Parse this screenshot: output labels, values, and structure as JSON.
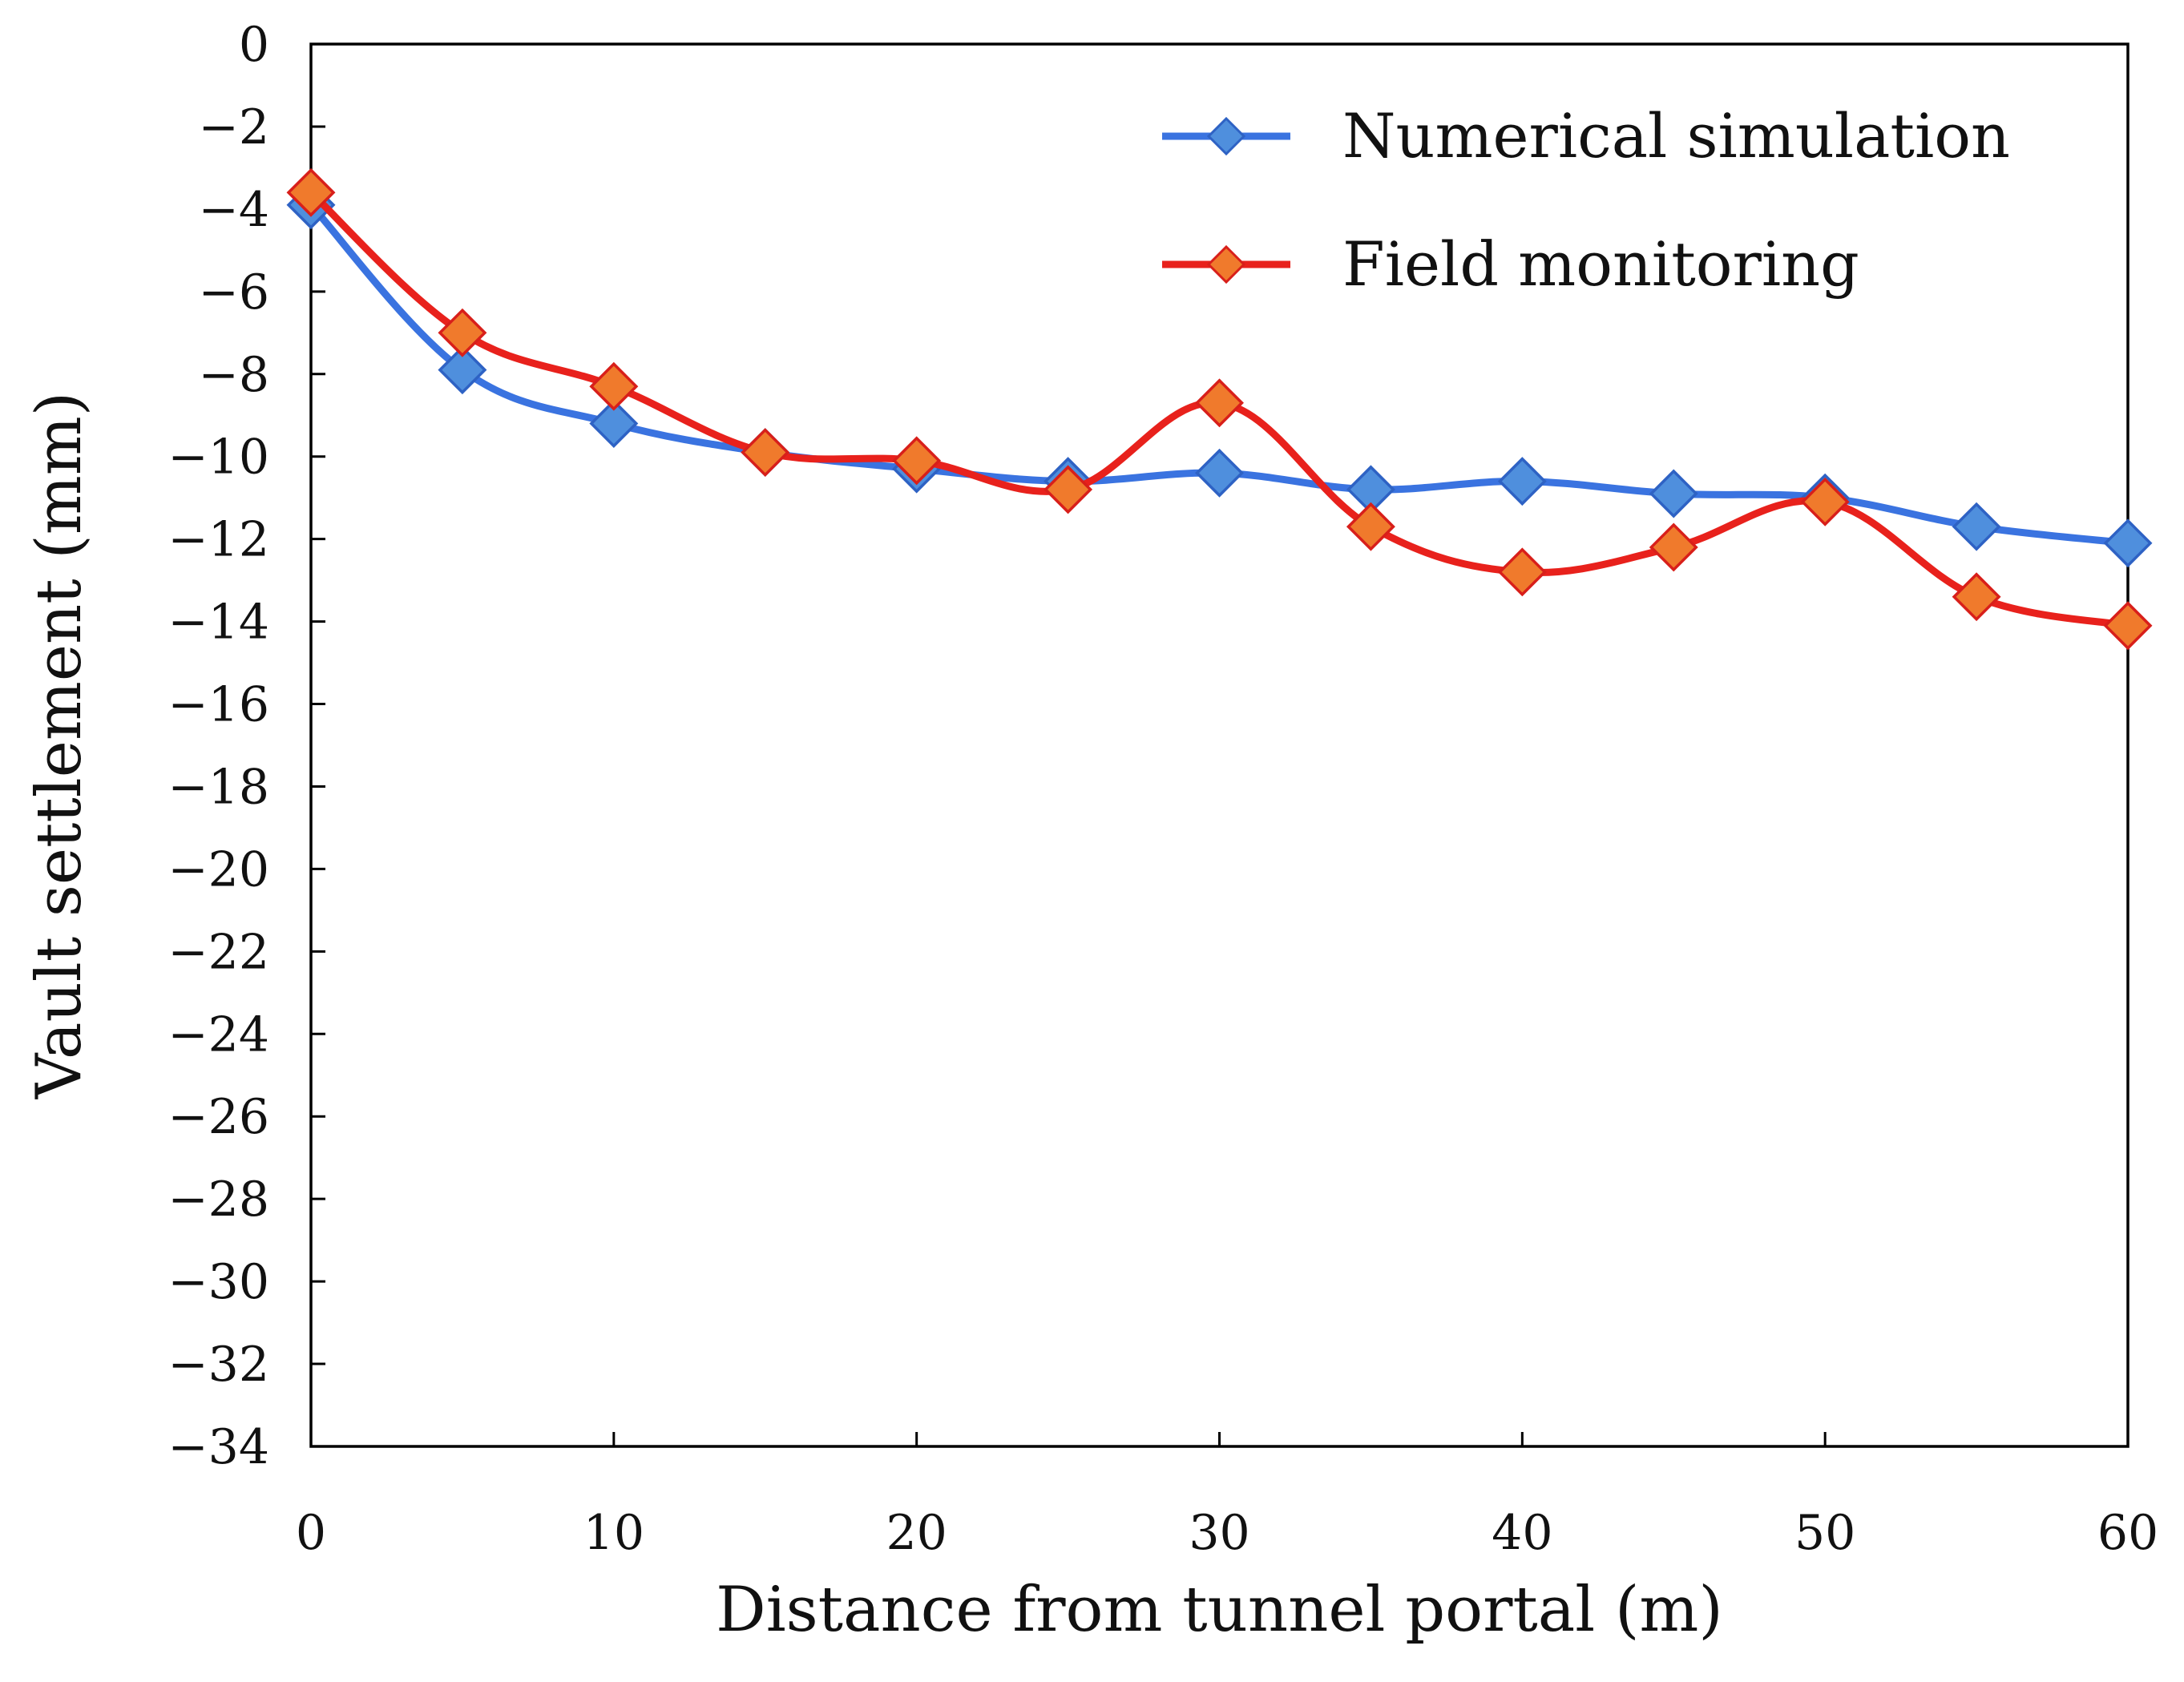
{
  "chart_data": {
    "type": "line",
    "title": "",
    "xlabel": "Distance from tunnel portal (m)",
    "ylabel": "Vault settlement (mm)",
    "xlim": [
      0,
      60
    ],
    "ylim": [
      -34,
      0
    ],
    "x_ticks": [
      0,
      10,
      20,
      30,
      40,
      50,
      60
    ],
    "y_ticks": [
      0,
      -2,
      -4,
      -6,
      -8,
      -10,
      -12,
      -14,
      -16,
      -18,
      -20,
      -22,
      -24,
      -26,
      -28,
      -30,
      -32,
      -34
    ],
    "grid": false,
    "legend_position": "top-right",
    "x": [
      0,
      5,
      10,
      15,
      20,
      25,
      30,
      35,
      40,
      45,
      50,
      55,
      60
    ],
    "series": [
      {
        "name": "Numerical simulation",
        "line_color": "#3a73e0",
        "marker_color": "#4f8fdd",
        "marker_edge": "#2e62c4",
        "values": [
          -3.9,
          -7.9,
          -9.2,
          -9.9,
          -10.3,
          -10.6,
          -10.4,
          -10.8,
          -10.6,
          -10.9,
          -11.0,
          -11.7,
          -12.1
        ]
      },
      {
        "name": "Field monitoring",
        "line_color": "#e8211c",
        "marker_color": "#f07a2c",
        "marker_edge": "#d81f1a",
        "values": [
          -3.6,
          -7.0,
          -8.3,
          -9.9,
          -10.1,
          -10.8,
          -8.7,
          -11.7,
          -12.8,
          -12.2,
          -11.1,
          -13.4,
          -14.1
        ]
      }
    ]
  }
}
